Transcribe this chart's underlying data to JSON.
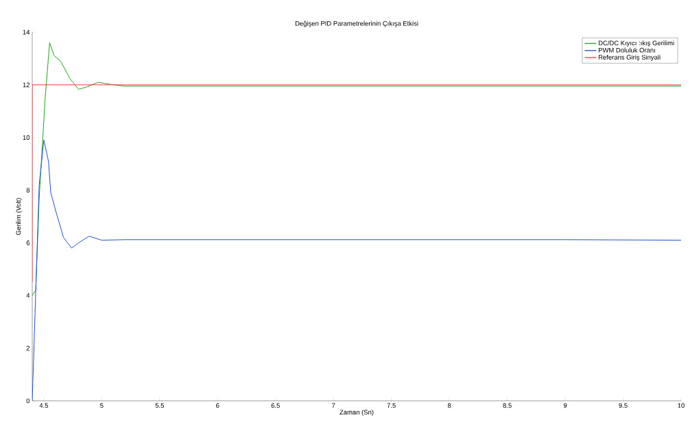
{
  "chart_data": {
    "type": "line",
    "title": "Değişen PID Parametrelerinin Çıkışa Etkisi",
    "xlabel": "Zaman (Sn)",
    "ylabel": "Gerilim (Volt)",
    "xlim": [
      4.4,
      10
    ],
    "ylim": [
      0,
      14
    ],
    "xticks": [
      4.5,
      5,
      5.5,
      6,
      6.5,
      7,
      7.5,
      8,
      8.5,
      9,
      9.5,
      10
    ],
    "yticks": [
      0,
      2,
      4,
      6,
      8,
      10,
      12,
      14
    ],
    "legend": "top right",
    "grid": false,
    "marker": "none",
    "line_style": "solid",
    "series": [
      {
        "name": "DC/DC Kıyıcı :ıkış Gerilimi",
        "color": "#1ea51e",
        "x": [
          4.4,
          4.43,
          4.46,
          4.51,
          4.55,
          4.59,
          4.645,
          4.725,
          4.8,
          4.87,
          4.97,
          5.03,
          5.1,
          5.2,
          5.5,
          6,
          7,
          8,
          9,
          10
        ],
        "values": [
          4.0,
          4.2,
          7.7,
          11.4,
          13.6,
          13.1,
          12.9,
          12.24,
          11.83,
          11.92,
          12.1,
          12.05,
          12.0,
          11.95,
          11.95,
          11.95,
          11.95,
          11.95,
          11.95,
          11.95
        ]
      },
      {
        "name": "PWM Doluluk Oranı",
        "color": "#1f4fd0",
        "x": [
          4.4,
          4.43,
          4.46,
          4.5,
          4.54,
          4.56,
          4.61,
          4.67,
          4.74,
          4.8,
          4.89,
          5.0,
          5.2,
          6,
          7,
          8,
          9,
          10
        ],
        "values": [
          0,
          4.1,
          8.2,
          9.9,
          9.1,
          7.9,
          7.1,
          6.2,
          5.8,
          6.0,
          6.25,
          6.1,
          6.12,
          6.12,
          6.12,
          6.12,
          6.12,
          6.1
        ]
      },
      {
        "name": "Referans Giriş Sinyali",
        "color": "#e8393c",
        "x": [
          4.4,
          4.4,
          10
        ],
        "values": [
          4.5,
          12,
          12
        ]
      }
    ]
  }
}
